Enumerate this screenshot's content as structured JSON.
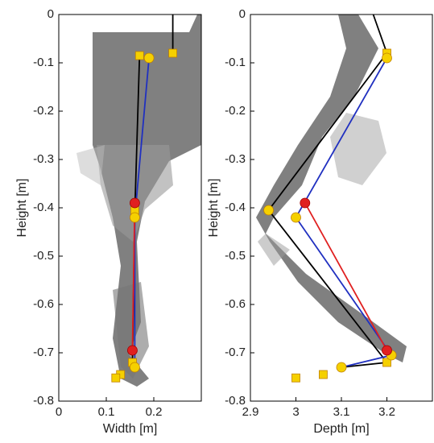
{
  "chart_data": [
    {
      "type": "line",
      "xlabel": "Width [m]",
      "ylabel": "Height [m]",
      "xlim": [
        0,
        0.3
      ],
      "xticks": [
        0,
        0.1,
        0.2
      ],
      "ylim": [
        -0.8,
        0
      ],
      "yticks": [
        0,
        -0.1,
        -0.2,
        -0.3,
        -0.4,
        -0.5,
        -0.6,
        -0.7,
        -0.8
      ],
      "series": [
        {
          "color": "#000000",
          "marker": "line",
          "x": [
            0.17,
            0.16,
            0.155
          ],
          "y": [
            -0.085,
            -0.41,
            -0.72
          ]
        },
        {
          "color": "#000000",
          "marker": "line",
          "x": [
            0.24,
            0.24
          ],
          "y": [
            0,
            -0.08
          ]
        },
        {
          "color": "#2030c0",
          "marker": "line",
          "x": [
            0.19,
            0.16,
            0.16
          ],
          "y": [
            -0.09,
            -0.42,
            -0.73
          ]
        },
        {
          "color": "#e02020",
          "marker": "line",
          "x": [
            0.16,
            0.155
          ],
          "y": [
            -0.39,
            -0.695
          ]
        },
        {
          "color": "#f5d000",
          "marker": "square",
          "x": [
            0.17,
            0.24,
            0.16,
            0.155,
            0.13,
            0.12
          ],
          "y": [
            -0.085,
            -0.08,
            -0.405,
            -0.72,
            -0.745,
            -0.752
          ]
        },
        {
          "color": "#f5d000",
          "marker": "circle",
          "x": [
            0.19,
            0.16,
            0.16
          ],
          "y": [
            -0.09,
            -0.42,
            -0.73
          ]
        },
        {
          "color": "#e02020",
          "marker": "circle",
          "x": [
            0.16,
            0.155
          ],
          "y": [
            -0.39,
            -0.695
          ]
        }
      ]
    },
    {
      "type": "line",
      "xlabel": "Depth [m]",
      "ylabel": "Height [m]",
      "xlim": [
        2.9,
        3.3
      ],
      "xticks": [
        2.9,
        3,
        3.1,
        3.2
      ],
      "ylim": [
        -0.8,
        0
      ],
      "yticks": [
        0,
        -0.1,
        -0.2,
        -0.3,
        -0.4,
        -0.5,
        -0.6,
        -0.7,
        -0.8
      ],
      "series": [
        {
          "color": "#000000",
          "marker": "line",
          "x": [
            3.17,
            3.2,
            2.94,
            3.2,
            3.1
          ],
          "y": [
            0,
            -0.08,
            -0.405,
            -0.72,
            -0.73
          ]
        },
        {
          "color": "#2030c0",
          "marker": "line",
          "x": [
            3.2,
            3.0,
            3.21,
            3.1
          ],
          "y": [
            -0.09,
            -0.42,
            -0.705,
            -0.73
          ]
        },
        {
          "color": "#e02020",
          "marker": "line",
          "x": [
            3.02,
            3.2
          ],
          "y": [
            -0.39,
            -0.695
          ]
        },
        {
          "color": "#f5d000",
          "marker": "square",
          "x": [
            3.2,
            3.2,
            3.06,
            3.0
          ],
          "y": [
            -0.08,
            -0.72,
            -0.745,
            -0.752
          ]
        },
        {
          "color": "#f5d000",
          "marker": "circle",
          "x": [
            3.2,
            2.94,
            3.0,
            3.21,
            3.1
          ],
          "y": [
            -0.09,
            -0.405,
            -0.42,
            -0.705,
            -0.73
          ]
        },
        {
          "color": "#e02020",
          "marker": "circle",
          "x": [
            3.02,
            3.2
          ],
          "y": [
            -0.39,
            -0.695
          ]
        }
      ]
    }
  ]
}
